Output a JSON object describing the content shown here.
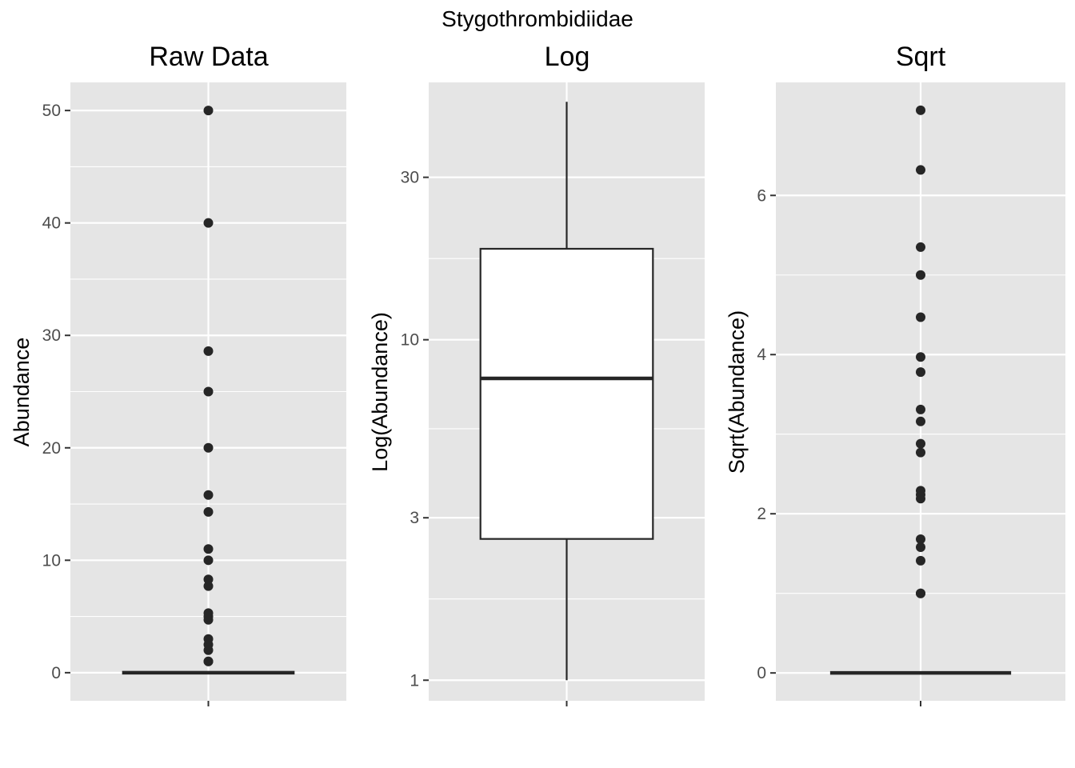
{
  "figure": {
    "title": "Stygothrombidiidae",
    "background": "#ffffff",
    "panel_background": "#e5e5e5",
    "grid_color": "#ffffff",
    "point_color": "#262626"
  },
  "chart_data": [
    {
      "type": "boxplot",
      "title": "Raw Data",
      "xlabel": "",
      "ylabel": "Abundance",
      "scale": "linear",
      "ylim": [
        -2.5,
        52.5
      ],
      "yticks": [
        0,
        10,
        20,
        30,
        40,
        50
      ],
      "ytick_labels": [
        "0",
        "10",
        "20",
        "30",
        "40",
        "50"
      ],
      "box": {
        "q1": 0,
        "median": 0,
        "q3": 0,
        "whisker_low": 0,
        "whisker_high": 0
      },
      "outliers": [
        1,
        1,
        2,
        2.5,
        3,
        4.7,
        5,
        5.3,
        7.7,
        8.3,
        10,
        11,
        14.3,
        15.8,
        20,
        25,
        28.6,
        40,
        50
      ],
      "grid": true
    },
    {
      "type": "boxplot",
      "title": "Log",
      "xlabel": "",
      "ylabel": "Log(Abundance)",
      "scale": "log10",
      "ylim": [
        0.87,
        57
      ],
      "yticks": [
        1,
        3,
        10,
        30
      ],
      "ytick_labels": [
        "1",
        "3",
        "10",
        "30"
      ],
      "box": {
        "q1": 2.6,
        "median": 7.7,
        "q3": 18.5,
        "whisker_low": 1,
        "whisker_high": 50
      },
      "outliers": [],
      "grid": true
    },
    {
      "type": "boxplot",
      "title": "Sqrt",
      "xlabel": "",
      "ylabel": "Sqrt(Abundance)",
      "scale": "linear",
      "ylim": [
        -0.35,
        7.42
      ],
      "yticks": [
        0,
        2,
        4,
        6
      ],
      "ytick_labels": [
        "0",
        "2",
        "4",
        "6"
      ],
      "box": {
        "q1": 0,
        "median": 0,
        "q3": 0,
        "whisker_low": 0,
        "whisker_high": 0
      },
      "outliers": [
        1,
        1,
        1.41,
        1.58,
        1.68,
        2.19,
        2.24,
        2.29,
        2.77,
        2.88,
        3.16,
        3.31,
        3.78,
        3.97,
        4.47,
        5,
        5.35,
        6.32,
        7.07
      ],
      "grid": true
    }
  ]
}
